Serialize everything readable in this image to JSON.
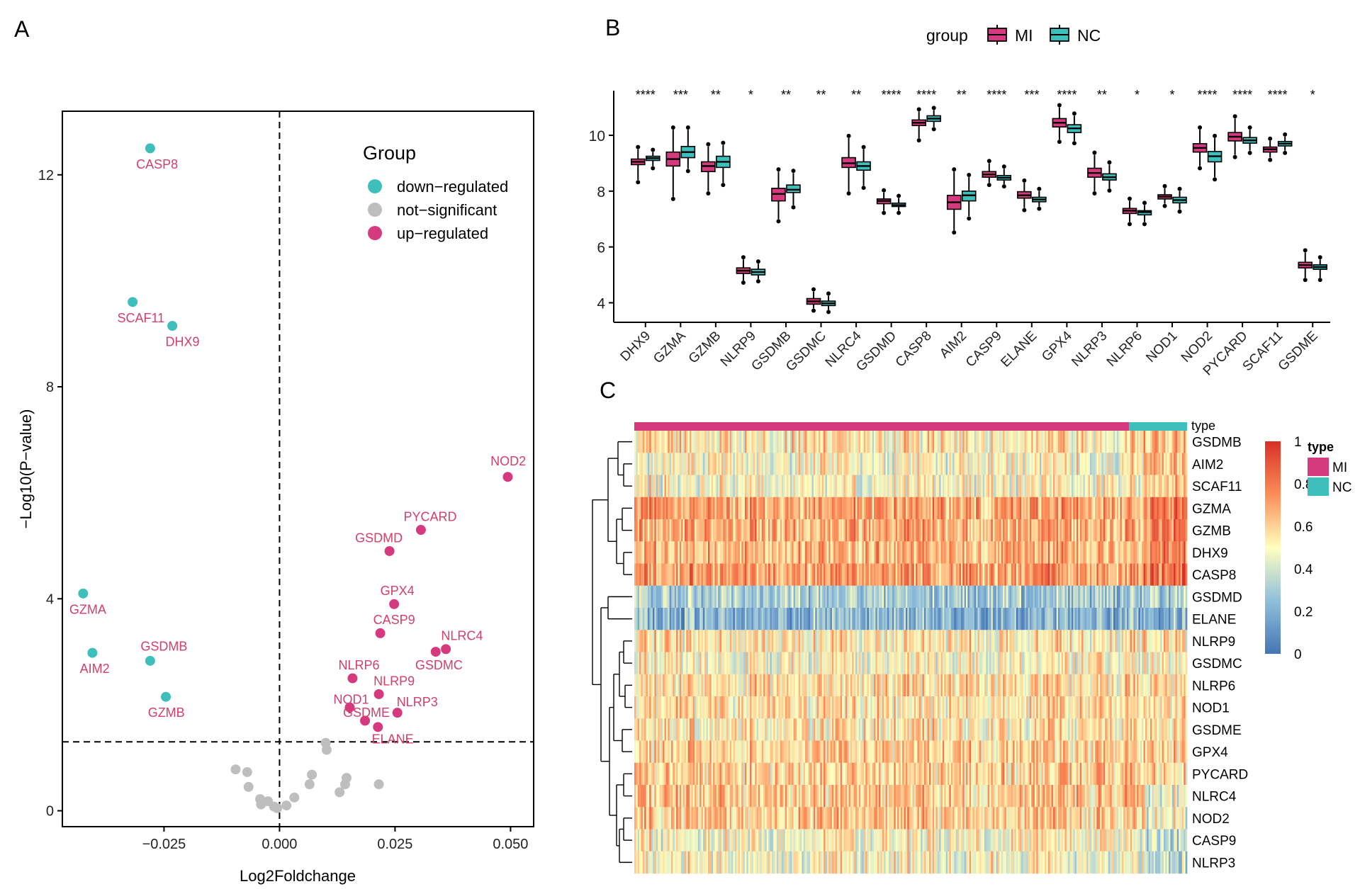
{
  "panels": {
    "a": "A",
    "b": "B",
    "c": "C"
  },
  "colors": {
    "up": "#D63A7E",
    "down": "#3FBFBC",
    "ns": "#BEBEBE",
    "label": "#D33E6A",
    "mi": "#D63A7E",
    "nc": "#3FBFBC",
    "heat_low": "#4575B4",
    "heat_mid": "#FFFFBF",
    "heat_high": "#D73027"
  },
  "chart_data": [
    {
      "id": "volcano",
      "type": "scatter",
      "xlabel": "Log2Foldchange",
      "ylabel": "−Log10(P−value)",
      "xlim": [
        -0.047,
        0.055
      ],
      "ylim": [
        -0.3,
        13.2
      ],
      "xticks": [
        -0.025,
        0.0,
        0.025,
        0.05
      ],
      "xtick_labels": [
        "−0.025",
        "0.000",
        "0.025",
        "0.050"
      ],
      "yticks": [
        0,
        4,
        8,
        12
      ],
      "ytick_labels": [
        "0",
        "4",
        "8",
        "12"
      ],
      "vline": 0,
      "hline": 1.3,
      "grid": false,
      "legend": {
        "title": "Group",
        "position": "top-right",
        "entries": [
          {
            "label": "down−regulated",
            "key": "down"
          },
          {
            "label": "not−significant",
            "key": "ns"
          },
          {
            "label": "up−regulated",
            "key": "up"
          }
        ]
      },
      "points": [
        {
          "label": "CASP8",
          "x": -0.028,
          "y": 12.5,
          "group": "down",
          "lx": -0.0265,
          "ly": 12.2
        },
        {
          "label": "SCAF11",
          "x": -0.0318,
          "y": 9.6,
          "group": "down",
          "lx": -0.03,
          "ly": 9.3
        },
        {
          "label": "DHX9",
          "x": -0.0232,
          "y": 9.15,
          "group": "down",
          "lx": -0.021,
          "ly": 8.85
        },
        {
          "label": "GZMA",
          "x": -0.0425,
          "y": 4.1,
          "group": "down",
          "lx": -0.0415,
          "ly": 3.8
        },
        {
          "label": "AIM2",
          "x": -0.0405,
          "y": 2.98,
          "group": "down",
          "lx": -0.04,
          "ly": 2.68
        },
        {
          "label": "GSDMB",
          "x": -0.028,
          "y": 2.83,
          "group": "down",
          "lx": -0.025,
          "ly": 3.1
        },
        {
          "label": "GZMB",
          "x": -0.0246,
          "y": 2.15,
          "group": "down",
          "lx": -0.0245,
          "ly": 1.85
        },
        {
          "label": "NOD2",
          "x": 0.0494,
          "y": 6.3,
          "group": "up",
          "lx": 0.0495,
          "ly": 6.6
        },
        {
          "label": "PYCARD",
          "x": 0.0306,
          "y": 5.3,
          "group": "up",
          "lx": 0.0326,
          "ly": 5.55
        },
        {
          "label": "GSDMD",
          "x": 0.0238,
          "y": 4.9,
          "group": "up",
          "lx": 0.0215,
          "ly": 5.15
        },
        {
          "label": "GPX4",
          "x": 0.0248,
          "y": 3.9,
          "group": "up",
          "lx": 0.0255,
          "ly": 4.15
        },
        {
          "label": "CASP9",
          "x": 0.0218,
          "y": 3.35,
          "group": "up",
          "lx": 0.0248,
          "ly": 3.6
        },
        {
          "label": "NLRC4",
          "x": 0.036,
          "y": 3.05,
          "group": "up",
          "lx": 0.0395,
          "ly": 3.3
        },
        {
          "label": "GSDMC",
          "x": 0.0338,
          "y": 3.0,
          "group": "up",
          "lx": 0.0345,
          "ly": 2.75
        },
        {
          "label": "NLRP6",
          "x": 0.0158,
          "y": 2.5,
          "group": "up",
          "lx": 0.0172,
          "ly": 2.75
        },
        {
          "label": "NLRP9",
          "x": 0.0215,
          "y": 2.2,
          "group": "up",
          "lx": 0.0248,
          "ly": 2.45
        },
        {
          "label": "NOD1",
          "x": 0.0152,
          "y": 1.95,
          "group": "up",
          "lx": 0.0155,
          "ly": 2.1
        },
        {
          "label": "NLRP3",
          "x": 0.0255,
          "y": 1.85,
          "group": "up",
          "lx": 0.0298,
          "ly": 2.05
        },
        {
          "label": "GSDME",
          "x": 0.0185,
          "y": 1.7,
          "group": "up",
          "lx": 0.0188,
          "ly": 1.85
        },
        {
          "label": "ELANE",
          "x": 0.0213,
          "y": 1.58,
          "group": "up",
          "lx": 0.0245,
          "ly": 1.35
        },
        {
          "label": "",
          "x": 0.01,
          "y": 1.28,
          "group": "ns"
        },
        {
          "label": "",
          "x": 0.0102,
          "y": 1.15,
          "group": "ns"
        },
        {
          "label": "",
          "x": -0.0095,
          "y": 0.78,
          "group": "ns"
        },
        {
          "label": "",
          "x": -0.007,
          "y": 0.73,
          "group": "ns"
        },
        {
          "label": "",
          "x": -0.0067,
          "y": 0.45,
          "group": "ns"
        },
        {
          "label": "",
          "x": 0.007,
          "y": 0.68,
          "group": "ns"
        },
        {
          "label": "",
          "x": 0.0145,
          "y": 0.62,
          "group": "ns"
        },
        {
          "label": "",
          "x": 0.0142,
          "y": 0.5,
          "group": "ns"
        },
        {
          "label": "",
          "x": 0.0065,
          "y": 0.5,
          "group": "ns"
        },
        {
          "label": "",
          "x": 0.0215,
          "y": 0.5,
          "group": "ns"
        },
        {
          "label": "",
          "x": 0.013,
          "y": 0.35,
          "group": "ns"
        },
        {
          "label": "",
          "x": 0.0032,
          "y": 0.25,
          "group": "ns"
        },
        {
          "label": "",
          "x": -0.0042,
          "y": 0.22,
          "group": "ns"
        },
        {
          "label": "",
          "x": -0.0025,
          "y": 0.18,
          "group": "ns"
        },
        {
          "label": "",
          "x": -0.004,
          "y": 0.12,
          "group": "ns"
        },
        {
          "label": "",
          "x": -0.0012,
          "y": 0.08,
          "group": "ns"
        },
        {
          "label": "",
          "x": 0.0015,
          "y": 0.1,
          "group": "ns"
        },
        {
          "label": "",
          "x": -0.0005,
          "y": 0.05,
          "group": "ns"
        }
      ]
    },
    {
      "id": "boxplot",
      "type": "box",
      "legend": {
        "title": "group",
        "position": "top",
        "entries": [
          {
            "label": "MI",
            "key": "mi"
          },
          {
            "label": "NC",
            "key": "nc"
          }
        ]
      },
      "ylim": [
        3.3,
        11.6
      ],
      "yticks": [
        4,
        6,
        8,
        10
      ],
      "ytick_labels": [
        "4",
        "6",
        "8",
        "10"
      ],
      "categories": [
        "DHX9",
        "GZMA",
        "GZMB",
        "NLRP9",
        "GSDMB",
        "GSDMC",
        "NLRC4",
        "GSDMD",
        "CASP8",
        "AIM2",
        "CASP9",
        "ELANE",
        "GPX4",
        "NLRP3",
        "NLRP6",
        "NOD1",
        "NOD2",
        "PYCARD",
        "SCAF11",
        "GSDME"
      ],
      "significance": [
        "****",
        "***",
        "**",
        "*",
        "**",
        "**",
        "**",
        "****",
        "****",
        "**",
        "****",
        "***",
        "****",
        "**",
        "*",
        "*",
        "****",
        "****",
        "****",
        "*"
      ],
      "series": [
        {
          "name": "MI",
          "boxes": [
            [
              8.4,
              8.95,
              9.05,
              9.15,
              9.5
            ],
            [
              7.8,
              8.9,
              9.15,
              9.4,
              10.2
            ],
            [
              8.0,
              8.7,
              8.9,
              9.05,
              9.6
            ],
            [
              4.8,
              5.05,
              5.15,
              5.25,
              5.55
            ],
            [
              7.0,
              7.65,
              7.9,
              8.1,
              8.7
            ],
            [
              3.8,
              3.95,
              4.05,
              4.15,
              4.4
            ],
            [
              8.0,
              8.85,
              9.0,
              9.2,
              9.9
            ],
            [
              7.3,
              7.55,
              7.65,
              7.72,
              7.95
            ],
            [
              9.9,
              10.35,
              10.45,
              10.55,
              10.85
            ],
            [
              6.6,
              7.35,
              7.6,
              7.85,
              8.7
            ],
            [
              8.3,
              8.5,
              8.6,
              8.7,
              9.0
            ],
            [
              7.4,
              7.75,
              7.85,
              7.98,
              8.3
            ],
            [
              9.85,
              10.3,
              10.45,
              10.6,
              11.0
            ],
            [
              8.0,
              8.5,
              8.65,
              8.82,
              9.3
            ],
            [
              6.9,
              7.2,
              7.3,
              7.38,
              7.65
            ],
            [
              7.55,
              7.72,
              7.8,
              7.87,
              8.1
            ],
            [
              8.9,
              9.4,
              9.55,
              9.7,
              10.2
            ],
            [
              9.3,
              9.8,
              9.95,
              10.1,
              10.6
            ],
            [
              9.2,
              9.4,
              9.5,
              9.58,
              9.8
            ],
            [
              4.9,
              5.25,
              5.35,
              5.45,
              5.8
            ]
          ]
        },
        {
          "name": "NC",
          "boxes": [
            [
              8.9,
              9.1,
              9.18,
              9.25,
              9.4
            ],
            [
              8.8,
              9.2,
              9.4,
              9.6,
              10.2
            ],
            [
              8.3,
              8.85,
              9.05,
              9.25,
              9.65
            ],
            [
              4.85,
              5.0,
              5.1,
              5.2,
              5.4
            ],
            [
              7.5,
              7.95,
              8.05,
              8.22,
              8.65
            ],
            [
              3.75,
              3.9,
              3.98,
              4.06,
              4.25
            ],
            [
              8.2,
              8.75,
              8.9,
              9.05,
              9.5
            ],
            [
              7.3,
              7.45,
              7.5,
              7.57,
              7.75
            ],
            [
              10.3,
              10.5,
              10.6,
              10.7,
              10.9
            ],
            [
              7.1,
              7.65,
              7.85,
              8.0,
              8.5
            ],
            [
              8.25,
              8.4,
              8.48,
              8.56,
              8.8
            ],
            [
              7.45,
              7.62,
              7.7,
              7.78,
              8.0
            ],
            [
              9.8,
              10.1,
              10.25,
              10.38,
              10.7
            ],
            [
              8.1,
              8.4,
              8.5,
              8.62,
              8.95
            ],
            [
              6.9,
              7.15,
              7.25,
              7.3,
              7.5
            ],
            [
              7.35,
              7.58,
              7.68,
              7.78,
              8.0
            ],
            [
              8.5,
              9.05,
              9.25,
              9.42,
              9.9
            ],
            [
              9.45,
              9.72,
              9.82,
              9.92,
              10.2
            ],
            [
              9.45,
              9.62,
              9.7,
              9.78,
              9.95
            ],
            [
              4.9,
              5.2,
              5.28,
              5.36,
              5.55
            ]
          ]
        }
      ]
    },
    {
      "id": "heatmap",
      "type": "heatmap",
      "rows": [
        "GSDMB",
        "AIM2",
        "SCAF11",
        "GZMA",
        "GZMB",
        "DHX9",
        "CASP8",
        "GSDMD",
        "ELANE",
        "NLRP9",
        "GSDMC",
        "NLRP6",
        "NOD1",
        "GSDME",
        "GPX4",
        "PYCARD",
        "NLRC4",
        "NOD2",
        "CASP9",
        "NLRP3"
      ],
      "row_means": [
        0.55,
        0.5,
        0.5,
        0.7,
        0.68,
        0.66,
        0.72,
        0.3,
        0.22,
        0.55,
        0.5,
        0.58,
        0.56,
        0.55,
        0.6,
        0.6,
        0.62,
        0.62,
        0.5,
        0.5
      ],
      "top_annotation": {
        "label": "type",
        "groups": [
          {
            "key": "MI",
            "fraction": 0.895
          },
          {
            "key": "NC",
            "fraction": 0.105
          }
        ]
      },
      "colorbar": {
        "ticks": [
          "1",
          "0.8",
          "0.6",
          "0.4",
          "0.2",
          "0"
        ],
        "range": [
          0,
          1
        ]
      },
      "annotation_legend": {
        "title": "type",
        "entries": [
          "MI",
          "NC"
        ]
      }
    }
  ]
}
